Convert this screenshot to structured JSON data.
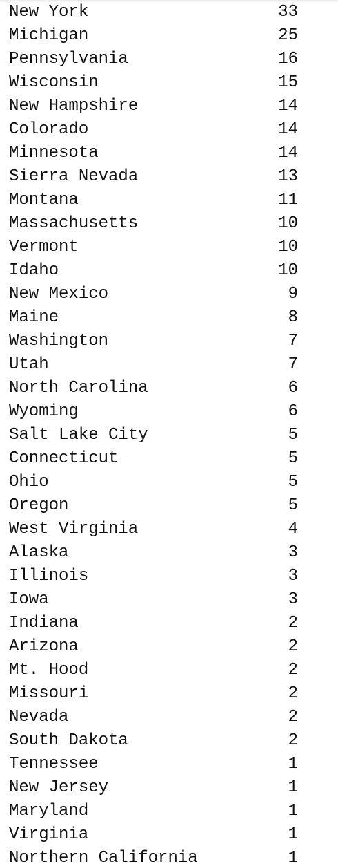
{
  "value_counts": [
    {
      "name": "New York",
      "count": "33"
    },
    {
      "name": "Michigan",
      "count": "25"
    },
    {
      "name": "Pennsylvania",
      "count": "16"
    },
    {
      "name": "Wisconsin",
      "count": "15"
    },
    {
      "name": "New Hampshire",
      "count": "14"
    },
    {
      "name": "Colorado",
      "count": "14"
    },
    {
      "name": "Minnesota",
      "count": "14"
    },
    {
      "name": "Sierra Nevada",
      "count": "13"
    },
    {
      "name": "Montana",
      "count": "11"
    },
    {
      "name": "Massachusetts",
      "count": "10"
    },
    {
      "name": "Vermont",
      "count": "10"
    },
    {
      "name": "Idaho",
      "count": "10"
    },
    {
      "name": "New Mexico",
      "count": "9"
    },
    {
      "name": "Maine",
      "count": "8"
    },
    {
      "name": "Washington",
      "count": "7"
    },
    {
      "name": "Utah",
      "count": "7"
    },
    {
      "name": "North Carolina",
      "count": "6"
    },
    {
      "name": "Wyoming",
      "count": "6"
    },
    {
      "name": "Salt Lake City",
      "count": "5"
    },
    {
      "name": "Connecticut",
      "count": "5"
    },
    {
      "name": "Ohio",
      "count": "5"
    },
    {
      "name": "Oregon",
      "count": "5"
    },
    {
      "name": "West Virginia",
      "count": "4"
    },
    {
      "name": "Alaska",
      "count": "3"
    },
    {
      "name": "Illinois",
      "count": "3"
    },
    {
      "name": "Iowa",
      "count": "3"
    },
    {
      "name": "Indiana",
      "count": "2"
    },
    {
      "name": "Arizona",
      "count": "2"
    },
    {
      "name": "Mt. Hood",
      "count": "2"
    },
    {
      "name": "Missouri",
      "count": "2"
    },
    {
      "name": "Nevada",
      "count": "2"
    },
    {
      "name": "South Dakota",
      "count": "2"
    },
    {
      "name": "Tennessee",
      "count": "1"
    },
    {
      "name": "New Jersey",
      "count": "1"
    },
    {
      "name": "Maryland",
      "count": "1"
    },
    {
      "name": "Virginia",
      "count": "1"
    },
    {
      "name": "Northern California",
      "count": "1"
    }
  ]
}
